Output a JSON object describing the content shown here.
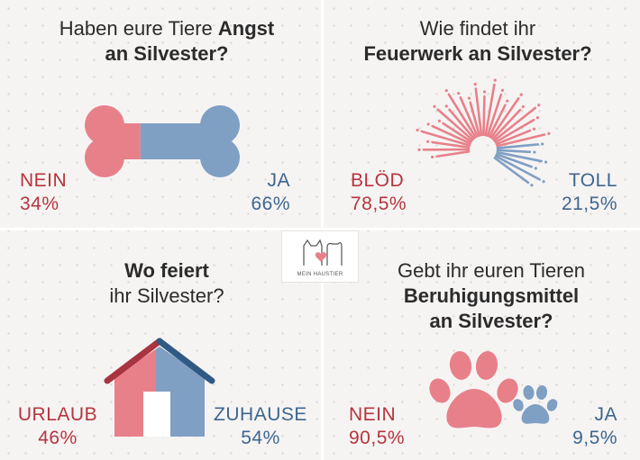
{
  "chart_data": [
    {
      "type": "pie",
      "title_parts": [
        "Haben eure Tiere ",
        "Angst",
        "an Silvester?"
      ],
      "categories": [
        "NEIN",
        "JA"
      ],
      "values": [
        34,
        66
      ],
      "value_labels": [
        "34%",
        "66%"
      ],
      "colors": [
        "#e8808a",
        "#7f9fc3"
      ]
    },
    {
      "type": "pie",
      "title_parts": [
        "Wie findet ihr",
        "Feuerwerk an Silvester?"
      ],
      "categories": [
        "BLÖD",
        "TOLL"
      ],
      "values": [
        78.5,
        21.5
      ],
      "value_labels": [
        "78,5%",
        "21,5%"
      ],
      "colors": [
        "#e8808a",
        "#7f9fc3"
      ]
    },
    {
      "type": "pie",
      "title_parts": [
        "Wo feiert",
        "ihr Silvester?"
      ],
      "categories": [
        "URLAUB",
        "ZUHAUSE"
      ],
      "values": [
        46,
        54
      ],
      "value_labels": [
        "46%",
        "54%"
      ],
      "colors": [
        "#e8808a",
        "#7f9fc3"
      ]
    },
    {
      "type": "pie",
      "title_parts": [
        "Gebt ihr euren Tieren",
        "Beruhigungsmittel",
        "an Silvester?"
      ],
      "categories": [
        "NEIN",
        "JA"
      ],
      "values": [
        90.5,
        9.5
      ],
      "value_labels": [
        "90,5%",
        "9,5%"
      ],
      "colors": [
        "#e8808a",
        "#7f9fc3"
      ]
    }
  ],
  "logo": {
    "text": "MEIN HAUSTIER",
    "icon": "cat-dog-heart-icon"
  },
  "icons": [
    "bone-icon",
    "firework-icon",
    "house-icon",
    "paw-icon"
  ]
}
